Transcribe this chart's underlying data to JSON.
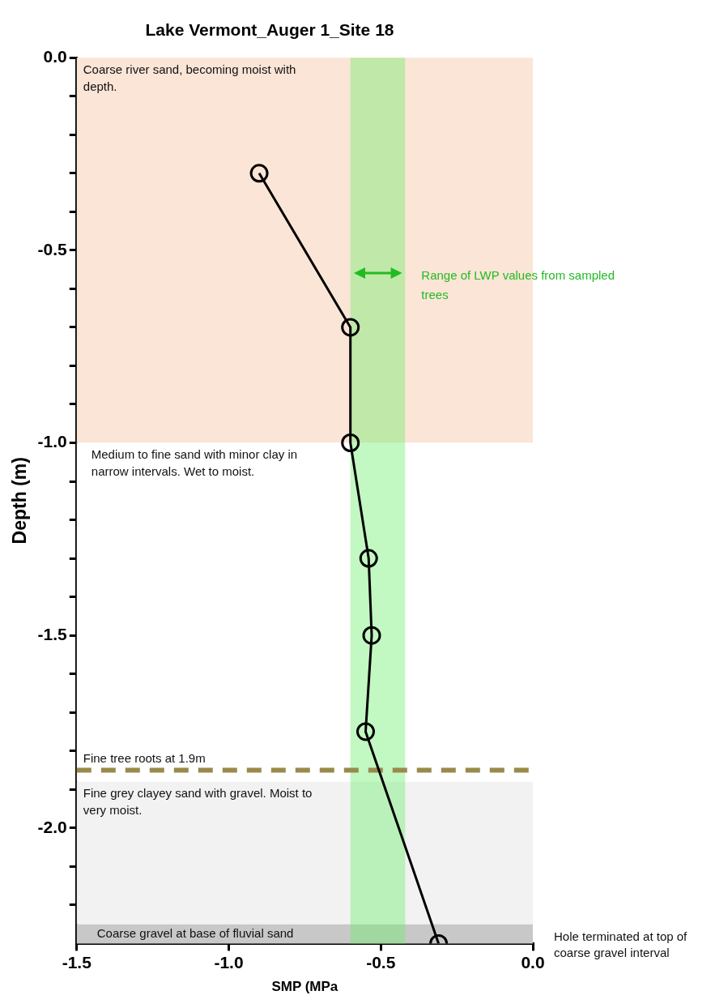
{
  "chart_data": {
    "type": "line",
    "title": "Lake Vermont_Auger 1_Site 18",
    "xlabel": "SMP (MPa",
    "ylabel": "Depth (m)",
    "x": [
      -0.9,
      -0.6,
      -0.6,
      -0.54,
      -0.53,
      -0.55,
      -0.31
    ],
    "series": [
      {
        "color": "#000000",
        "values": [
          -0.3,
          -0.7,
          -1.0,
          -1.3,
          -1.5,
          -1.75,
          -2.3
        ]
      }
    ],
    "xlim": [
      -1.5,
      0
    ],
    "xticks": [
      {
        "value": -1.5,
        "label": "-1.5"
      },
      {
        "value": -1,
        "label": "-1.0"
      },
      {
        "value": -0.5,
        "label": "-0.5"
      },
      {
        "value": 0,
        "label": "0.0"
      }
    ],
    "ylim": [
      -2.3,
      0
    ],
    "yticks": [
      {
        "value": 0,
        "label": "0.0"
      },
      {
        "value": -0.1,
        "label": null
      },
      {
        "value": -0.2,
        "label": null
      },
      {
        "value": -0.3,
        "label": null
      },
      {
        "value": -0.4,
        "label": null
      },
      {
        "value": -0.5,
        "label": "-0.5"
      },
      {
        "value": -0.6,
        "label": null
      },
      {
        "value": -0.7,
        "label": null
      },
      {
        "value": -0.8,
        "label": null
      },
      {
        "value": -0.9,
        "label": null
      },
      {
        "value": -1,
        "label": "-1.0"
      },
      {
        "value": -1.1,
        "label": null
      },
      {
        "value": -1.2,
        "label": null
      },
      {
        "value": -1.3,
        "label": null
      },
      {
        "value": -1.4,
        "label": null
      },
      {
        "value": -1.5,
        "label": "-1.5"
      },
      {
        "value": -1.6,
        "label": null
      },
      {
        "value": -1.7,
        "label": null
      },
      {
        "value": -1.8,
        "label": null
      },
      {
        "value": -1.9,
        "label": null
      },
      {
        "value": -2,
        "label": "-2.0"
      },
      {
        "value": -2.1,
        "label": null
      },
      {
        "value": -2.2,
        "label": null
      }
    ],
    "bands": [
      {
        "axis": "y",
        "from": 0,
        "to": -1,
        "label": "Coarse river sand, becoming moist with depth.",
        "color": "#fbe5d6"
      },
      {
        "axis": "y",
        "from": -1,
        "to": -1.88,
        "label": "Medium to fine sand with minor clay in narrow intervals. Wet to moist.",
        "color": "#ffffff"
      },
      {
        "axis": "y",
        "from": -1.88,
        "to": -2.25,
        "label": "Fine grey clayey sand with gravel. Moist to very moist.",
        "color": "#f2f2f2"
      },
      {
        "axis": "y",
        "from": -2.25,
        "to": -2.3,
        "label": "Coarse gravel at base of fluvial sand",
        "color": "#c8c8c8"
      },
      {
        "axis": "x",
        "from": -0.6,
        "to": -0.42,
        "label": "Range of LWP values from sampled trees",
        "color": "#66ee66"
      }
    ],
    "ref_lines": [
      {
        "axis": "y",
        "value": -1.85,
        "label": "Fine tree roots at 1.9m",
        "color": "#9a8a4a",
        "line_style": "dashed"
      }
    ],
    "annotations": [
      "Hole terminated at top of coarse gravel interval"
    ],
    "grid": false,
    "marker": "circle",
    "line_style": "solid"
  }
}
